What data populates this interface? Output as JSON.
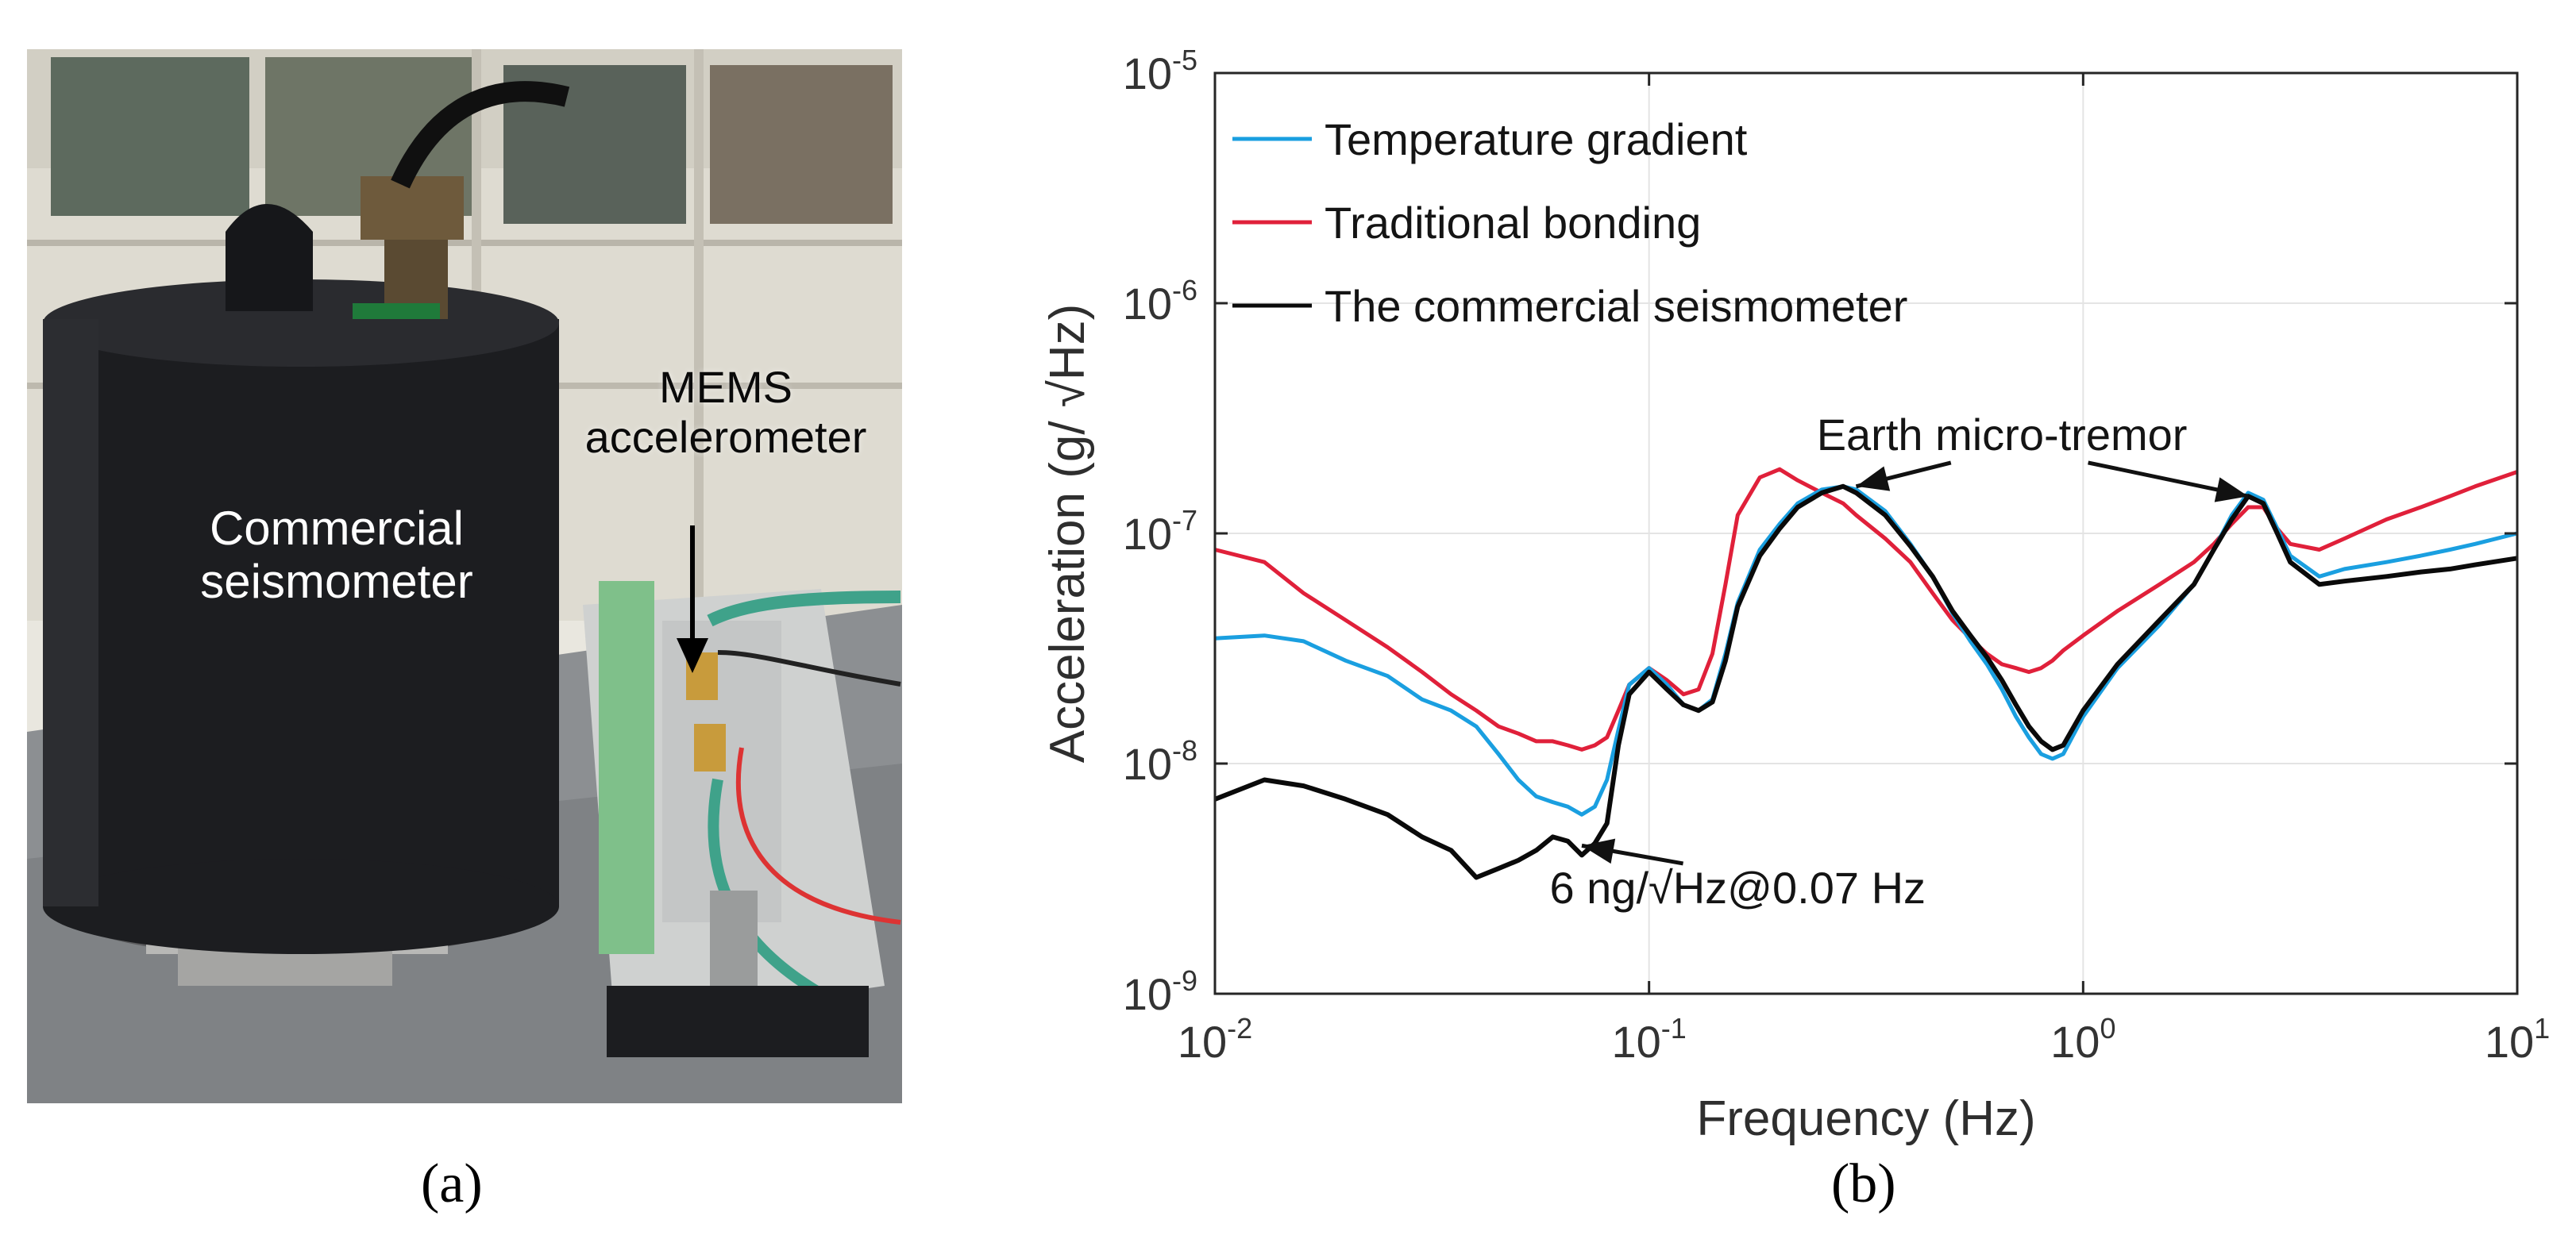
{
  "panel_a": {
    "caption": "(a)",
    "labels": {
      "seismometer": "Commercial seismometer",
      "mems": "MEMS accelerometer"
    }
  },
  "panel_b": {
    "caption": "(b)"
  },
  "chart_data": {
    "type": "line",
    "xlabel": "Frequency (Hz)",
    "ylabel": "Acceleration (g/ √Hz)",
    "xscale": "log",
    "yscale": "log",
    "xlim": [
      0.01,
      10
    ],
    "ylim": [
      1e-09,
      1e-05
    ],
    "x_ticks": [
      {
        "base": "10",
        "exp": "-2"
      },
      {
        "base": "10",
        "exp": "-1"
      },
      {
        "base": "10",
        "exp": "0"
      },
      {
        "base": "10",
        "exp": "1"
      }
    ],
    "y_ticks": [
      {
        "base": "10",
        "exp": "-9"
      },
      {
        "base": "10",
        "exp": "-8"
      },
      {
        "base": "10",
        "exp": "-7"
      },
      {
        "base": "10",
        "exp": "-6"
      },
      {
        "base": "10",
        "exp": "-5"
      }
    ],
    "grid": true,
    "legend_position": "top-left",
    "series": [
      {
        "name": "Temperature gradient",
        "color": "#1a9fe0",
        "points": [
          [
            0.01,
            3.5e-08
          ],
          [
            0.013,
            3.6e-08
          ],
          [
            0.016,
            3.4e-08
          ],
          [
            0.02,
            2.8e-08
          ],
          [
            0.025,
            2.4e-08
          ],
          [
            0.03,
            1.9e-08
          ],
          [
            0.035,
            1.7e-08
          ],
          [
            0.04,
            1.45e-08
          ],
          [
            0.045,
            1.1e-08
          ],
          [
            0.05,
            8.5e-09
          ],
          [
            0.055,
            7.2e-09
          ],
          [
            0.06,
            6.8e-09
          ],
          [
            0.065,
            6.5e-09
          ],
          [
            0.07,
            6e-09
          ],
          [
            0.075,
            6.5e-09
          ],
          [
            0.08,
            8.5e-09
          ],
          [
            0.085,
            1.4e-08
          ],
          [
            0.09,
            2.2e-08
          ],
          [
            0.1,
            2.6e-08
          ],
          [
            0.11,
            2.2e-08
          ],
          [
            0.12,
            1.8e-08
          ],
          [
            0.13,
            1.7e-08
          ],
          [
            0.14,
            1.9e-08
          ],
          [
            0.15,
            3e-08
          ],
          [
            0.16,
            5e-08
          ],
          [
            0.18,
            8.5e-08
          ],
          [
            0.2,
            1.1e-07
          ],
          [
            0.22,
            1.35e-07
          ],
          [
            0.25,
            1.55e-07
          ],
          [
            0.28,
            1.6e-07
          ],
          [
            0.3,
            1.55e-07
          ],
          [
            0.35,
            1.25e-07
          ],
          [
            0.4,
            9e-08
          ],
          [
            0.45,
            6.5e-08
          ],
          [
            0.5,
            4.5e-08
          ],
          [
            0.55,
            3.4e-08
          ],
          [
            0.6,
            2.7e-08
          ],
          [
            0.65,
            2.1e-08
          ],
          [
            0.7,
            1.6e-08
          ],
          [
            0.75,
            1.3e-08
          ],
          [
            0.8,
            1.1e-08
          ],
          [
            0.85,
            1.05e-08
          ],
          [
            0.9,
            1.1e-08
          ],
          [
            1.0,
            1.6e-08
          ],
          [
            1.2,
            2.6e-08
          ],
          [
            1.5,
            4e-08
          ],
          [
            1.8,
            6e-08
          ],
          [
            2.0,
            8.5e-08
          ],
          [
            2.2,
            1.2e-07
          ],
          [
            2.4,
            1.5e-07
          ],
          [
            2.6,
            1.4e-07
          ],
          [
            2.8,
            1.05e-07
          ],
          [
            3.0,
            8e-08
          ],
          [
            3.5,
            6.5e-08
          ],
          [
            4.0,
            7e-08
          ],
          [
            5.0,
            7.5e-08
          ],
          [
            6.0,
            8e-08
          ],
          [
            7.0,
            8.5e-08
          ],
          [
            8.0,
            9e-08
          ],
          [
            10.0,
            1e-07
          ]
        ]
      },
      {
        "name": "Traditional bonding",
        "color": "#e0203a",
        "points": [
          [
            0.01,
            8.5e-08
          ],
          [
            0.013,
            7.5e-08
          ],
          [
            0.016,
            5.5e-08
          ],
          [
            0.02,
            4.2e-08
          ],
          [
            0.025,
            3.2e-08
          ],
          [
            0.03,
            2.5e-08
          ],
          [
            0.035,
            2e-08
          ],
          [
            0.04,
            1.7e-08
          ],
          [
            0.045,
            1.45e-08
          ],
          [
            0.05,
            1.35e-08
          ],
          [
            0.055,
            1.25e-08
          ],
          [
            0.06,
            1.25e-08
          ],
          [
            0.065,
            1.2e-08
          ],
          [
            0.07,
            1.15e-08
          ],
          [
            0.075,
            1.2e-08
          ],
          [
            0.08,
            1.3e-08
          ],
          [
            0.085,
            1.7e-08
          ],
          [
            0.09,
            2.2e-08
          ],
          [
            0.1,
            2.6e-08
          ],
          [
            0.11,
            2.3e-08
          ],
          [
            0.12,
            2e-08
          ],
          [
            0.13,
            2.1e-08
          ],
          [
            0.14,
            3e-08
          ],
          [
            0.15,
            6e-08
          ],
          [
            0.16,
            1.2e-07
          ],
          [
            0.18,
            1.75e-07
          ],
          [
            0.2,
            1.9e-07
          ],
          [
            0.22,
            1.7e-07
          ],
          [
            0.25,
            1.5e-07
          ],
          [
            0.28,
            1.35e-07
          ],
          [
            0.3,
            1.2e-07
          ],
          [
            0.35,
            9.5e-08
          ],
          [
            0.4,
            7.5e-08
          ],
          [
            0.45,
            5.5e-08
          ],
          [
            0.5,
            4.2e-08
          ],
          [
            0.55,
            3.5e-08
          ],
          [
            0.6,
            3e-08
          ],
          [
            0.65,
            2.7e-08
          ],
          [
            0.7,
            2.6e-08
          ],
          [
            0.75,
            2.5e-08
          ],
          [
            0.8,
            2.6e-08
          ],
          [
            0.85,
            2.8e-08
          ],
          [
            0.9,
            3.1e-08
          ],
          [
            1.0,
            3.6e-08
          ],
          [
            1.2,
            4.6e-08
          ],
          [
            1.5,
            6e-08
          ],
          [
            1.8,
            7.5e-08
          ],
          [
            2.0,
            9e-08
          ],
          [
            2.2,
            1.1e-07
          ],
          [
            2.4,
            1.3e-07
          ],
          [
            2.6,
            1.3e-07
          ],
          [
            2.8,
            1.05e-07
          ],
          [
            3.0,
            9e-08
          ],
          [
            3.5,
            8.5e-08
          ],
          [
            4.0,
            9.5e-08
          ],
          [
            5.0,
            1.15e-07
          ],
          [
            6.0,
            1.3e-07
          ],
          [
            7.0,
            1.45e-07
          ],
          [
            8.0,
            1.6e-07
          ],
          [
            10.0,
            1.85e-07
          ]
        ]
      },
      {
        "name": "The commercial seismometer",
        "color": "#0a0a0a",
        "points": [
          [
            0.01,
            7e-09
          ],
          [
            0.013,
            8.5e-09
          ],
          [
            0.016,
            8e-09
          ],
          [
            0.02,
            7e-09
          ],
          [
            0.025,
            6e-09
          ],
          [
            0.03,
            4.8e-09
          ],
          [
            0.035,
            4.2e-09
          ],
          [
            0.04,
            3.2e-09
          ],
          [
            0.045,
            3.5e-09
          ],
          [
            0.05,
            3.8e-09
          ],
          [
            0.055,
            4.2e-09
          ],
          [
            0.06,
            4.8e-09
          ],
          [
            0.065,
            4.6e-09
          ],
          [
            0.07,
            4e-09
          ],
          [
            0.075,
            4.5e-09
          ],
          [
            0.08,
            5.5e-09
          ],
          [
            0.085,
            1.2e-08
          ],
          [
            0.09,
            2e-08
          ],
          [
            0.1,
            2.5e-08
          ],
          [
            0.11,
            2.1e-08
          ],
          [
            0.12,
            1.8e-08
          ],
          [
            0.13,
            1.7e-08
          ],
          [
            0.14,
            1.85e-08
          ],
          [
            0.15,
            2.8e-08
          ],
          [
            0.16,
            4.8e-08
          ],
          [
            0.18,
            8e-08
          ],
          [
            0.2,
            1.05e-07
          ],
          [
            0.22,
            1.3e-07
          ],
          [
            0.25,
            1.5e-07
          ],
          [
            0.28,
            1.6e-07
          ],
          [
            0.3,
            1.5e-07
          ],
          [
            0.35,
            1.2e-07
          ],
          [
            0.4,
            8.8e-08
          ],
          [
            0.45,
            6.5e-08
          ],
          [
            0.5,
            4.6e-08
          ],
          [
            0.55,
            3.6e-08
          ],
          [
            0.6,
            2.9e-08
          ],
          [
            0.65,
            2.3e-08
          ],
          [
            0.7,
            1.8e-08
          ],
          [
            0.75,
            1.45e-08
          ],
          [
            0.8,
            1.25e-08
          ],
          [
            0.85,
            1.15e-08
          ],
          [
            0.9,
            1.2e-08
          ],
          [
            1.0,
            1.7e-08
          ],
          [
            1.2,
            2.7e-08
          ],
          [
            1.5,
            4.2e-08
          ],
          [
            1.8,
            6e-08
          ],
          [
            2.0,
            8.5e-08
          ],
          [
            2.2,
            1.15e-07
          ],
          [
            2.4,
            1.45e-07
          ],
          [
            2.6,
            1.35e-07
          ],
          [
            2.8,
            1e-07
          ],
          [
            3.0,
            7.5e-08
          ],
          [
            3.5,
            6e-08
          ],
          [
            4.0,
            6.2e-08
          ],
          [
            5.0,
            6.5e-08
          ],
          [
            6.0,
            6.8e-08
          ],
          [
            7.0,
            7e-08
          ],
          [
            8.0,
            7.3e-08
          ],
          [
            10.0,
            7.8e-08
          ]
        ]
      }
    ],
    "annotations": [
      {
        "text": "Earth micro-tremor",
        "anchor": [
          0.65,
          2.7e-07
        ],
        "arrows_to": [
          [
            0.3,
            1.6e-07
          ],
          [
            2.4,
            1.45e-07
          ]
        ]
      },
      {
        "text": "6 ng/√Hz@0.07 Hz",
        "anchor": [
          0.16,
          2.9e-09
        ],
        "arrows_to": [
          [
            0.07,
            4.4e-09
          ]
        ]
      }
    ]
  }
}
